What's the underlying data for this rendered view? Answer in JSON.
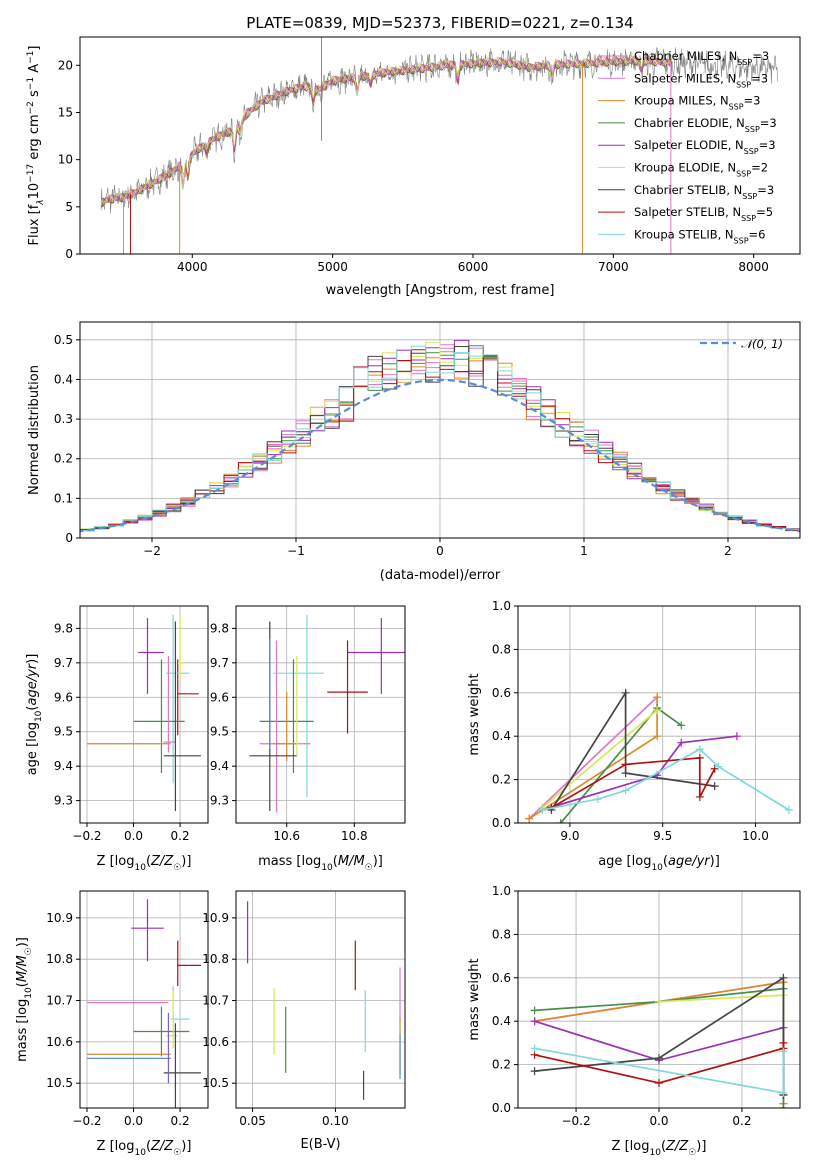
{
  "title": "PLATE=0839, MJD=52373, FIBERID=0221, z=0.134",
  "legend_entries": [
    {
      "label": "Chabrier MILES, N",
      "sub": "SSP",
      "tail": "=3",
      "color": "#e377c2"
    },
    {
      "label": "Salpeter MILES, N",
      "sub": "SSP",
      "tail": "=3",
      "color": "#e377c2"
    },
    {
      "label": "Kroupa MILES, N",
      "sub": "SSP",
      "tail": "=3",
      "color": "#d98a2b"
    },
    {
      "label": "Chabrier ELODIE, N",
      "sub": "SSP",
      "tail": "=3",
      "color": "#4a8c4a"
    },
    {
      "label": "Salpeter ELODIE, N",
      "sub": "SSP",
      "tail": "=3",
      "color": "#9b30b5"
    },
    {
      "label": "Kroupa ELODIE, N",
      "sub": "SSP",
      "tail": "=2",
      "color": "#d6e85a"
    },
    {
      "label": "Chabrier STELIB, N",
      "sub": "SSP",
      "tail": "=3",
      "color": "#444444"
    },
    {
      "label": "Salpeter STELIB, N",
      "sub": "SSP",
      "tail": "=5",
      "color": "#b01010"
    },
    {
      "label": "Kroupa STELIB, N",
      "sub": "SSP",
      "tail": "=6",
      "color": "#7fd8dc"
    }
  ],
  "chart_data": [
    {
      "id": "spectrum",
      "type": "line",
      "xlabel": "wavelength [Angstrom, rest frame]",
      "ylabel": "Flux [f_λ 10^-17 erg cm^-2 s^-1 A^-1]",
      "ylabel_parts": {
        "a": "Flux [f",
        "b": "λ",
        "c": "10",
        "d": "−17",
        "e": " erg cm",
        "f": "−2",
        "g": " s",
        "h": "−1",
        "i": " A",
        "j": "−1",
        "k": "]"
      },
      "xlim": [
        3200,
        8330
      ],
      "ylim": [
        0,
        23
      ],
      "xticks": [
        4000,
        5000,
        6000,
        7000,
        8000
      ],
      "yticks": [
        0,
        5,
        10,
        15,
        20
      ],
      "continuum": {
        "x": [
          3350,
          3400,
          3500,
          3600,
          3700,
          3800,
          3900,
          4000,
          4100,
          4200,
          4300,
          4400,
          4500,
          4600,
          4700,
          4800,
          4900,
          5000,
          5200,
          5400,
          5600,
          5800,
          6000,
          6200,
          6400,
          6600,
          6800,
          7000,
          7200,
          7400
        ],
        "y": [
          5.4,
          5.8,
          6.0,
          6.6,
          7.4,
          8.2,
          9.2,
          10.6,
          11.8,
          12.6,
          13.2,
          15.0,
          16.2,
          16.8,
          17.4,
          17.8,
          17.4,
          18.4,
          18.8,
          19.3,
          19.6,
          20.0,
          20.2,
          20.4,
          19.8,
          20.1,
          20.2,
          20.4,
          20.5,
          20.3
        ]
      }
    },
    {
      "id": "residual_hist",
      "type": "line",
      "xlabel": "(data-model)/error",
      "ylabel": "Normed distribution",
      "xlim": [
        -2.5,
        2.5
      ],
      "ylim": [
        0,
        0.545
      ],
      "xticks": [
        -2,
        -1,
        0,
        1,
        2
      ],
      "yticks": [
        0.0,
        0.1,
        0.2,
        0.3,
        0.4,
        0.5
      ],
      "legend": [
        "𝒩(0, 1)"
      ],
      "bin_width": 0.1,
      "reference_curve": {
        "name": "𝒩(0, 1)",
        "mean": 0,
        "sigma": 1,
        "color": "#5b8bd9"
      }
    },
    {
      "id": "age_vs_Z",
      "type": "scatter",
      "xlabel": "Z [log10(Z/Z☉)]",
      "ylabel": "age [log10(age/yr)]",
      "xlim": [
        -0.23,
        0.32
      ],
      "ylim": [
        9.235,
        9.865
      ],
      "xticks": [
        -0.2,
        0.0,
        0.2
      ],
      "yticks": [
        9.3,
        9.4,
        9.5,
        9.6,
        9.7,
        9.8
      ],
      "points": [
        {
          "x": 0.06,
          "y": 9.73,
          "xerr": [
            0.04,
            0.07
          ],
          "yerr": [
            0.12,
            0.1
          ],
          "color": "#9b30b5"
        },
        {
          "x": 0.19,
          "y": 9.61,
          "xerr": [
            0.0,
            0.09
          ],
          "yerr": [
            0.12,
            0.1
          ],
          "color": "#b01010"
        },
        {
          "x": 0.17,
          "y": 9.67,
          "xerr": [
            0.03,
            0.07
          ],
          "yerr": [
            0.32,
            0.17
          ],
          "color": "#7fd8dc"
        },
        {
          "x": 0.12,
          "y": 9.53,
          "xerr": [
            0.12,
            0.1
          ],
          "yerr": [
            0.15,
            0.18
          ],
          "color": "#4a8c4a"
        },
        {
          "x": -0.05,
          "y": 9.465,
          "xerr": [
            0.15,
            0.21
          ],
          "yerr": [
            0.0,
            0.0
          ],
          "color": "#d98a2b"
        },
        {
          "x": 0.15,
          "y": 9.47,
          "xerr": [
            0.02,
            0.03
          ],
          "yerr": [
            0.03,
            0.25
          ],
          "color": "#e377c2"
        },
        {
          "x": 0.18,
          "y": 9.43,
          "xerr": [
            0.05,
            0.11
          ],
          "yerr": [
            0.16,
            0.39
          ],
          "color": "#444444"
        },
        {
          "x": 0.2,
          "y": 9.7,
          "xerr": [
            0.01,
            0.02
          ],
          "yerr": [
            0.05,
            0.14
          ],
          "color": "#d6e85a"
        }
      ]
    },
    {
      "id": "age_vs_mass",
      "type": "scatter",
      "xlabel": "mass [log10(M/M☉)]",
      "ylabel": "",
      "xlim": [
        10.45,
        10.95
      ],
      "ylim": [
        9.235,
        9.865
      ],
      "xticks": [
        10.6,
        10.8
      ],
      "yticks": [
        9.3,
        9.4,
        9.5,
        9.6,
        9.7,
        9.8
      ],
      "points": [
        {
          "x": 10.88,
          "y": 9.73,
          "xerr": [
            0.1,
            0.07
          ],
          "yerr": [
            0.12,
            0.1
          ],
          "color": "#9b30b5"
        },
        {
          "x": 10.78,
          "y": 9.615,
          "xerr": [
            0.06,
            0.06
          ],
          "yerr": [
            0.12,
            0.15
          ],
          "color": "#b01010"
        },
        {
          "x": 10.66,
          "y": 9.67,
          "xerr": [
            0.1,
            0.05
          ],
          "yerr": [
            0.36,
            0.17
          ],
          "color": "#7fd8dc"
        },
        {
          "x": 10.62,
          "y": 9.53,
          "xerr": [
            0.1,
            0.06
          ],
          "yerr": [
            0.15,
            0.18
          ],
          "color": "#4a8c4a"
        },
        {
          "x": 10.57,
          "y": 9.465,
          "xerr": [
            0.05,
            0.1
          ],
          "yerr": [
            0.2,
            0.3
          ],
          "color": "#e377c2"
        },
        {
          "x": 10.6,
          "y": 9.465,
          "xerr": [
            0.04,
            0.03
          ],
          "yerr": [
            0.05,
            0.15
          ],
          "color": "#d98a2b"
        },
        {
          "x": 10.55,
          "y": 9.43,
          "xerr": [
            0.06,
            0.08
          ],
          "yerr": [
            0.16,
            0.39
          ],
          "color": "#444444"
        },
        {
          "x": 10.55,
          "y": 9.55,
          "xerr": [
            0.0,
            0.0
          ],
          "yerr": [
            0.1,
            0.22
          ],
          "color": "#5b8bd9"
        },
        {
          "x": 10.63,
          "y": 9.55,
          "xerr": [
            0.0,
            0.0
          ],
          "yerr": [
            0.12,
            0.17
          ],
          "color": "#d6e85a"
        }
      ]
    },
    {
      "id": "massweight_vs_age",
      "type": "line",
      "xlabel": "age [log10(age/yr)]",
      "ylabel": "mass weight",
      "xlim": [
        8.72,
        10.24
      ],
      "ylim": [
        0,
        1
      ],
      "xticks": [
        9.0,
        9.5,
        10.0
      ],
      "yticks": [
        0.0,
        0.2,
        0.4,
        0.6,
        0.8,
        1.0
      ],
      "series": [
        {
          "x": [
            8.78,
            9.47
          ],
          "y": [
            0.02,
            0.58
          ],
          "color": "#e377c2"
        },
        {
          "x": [
            8.78,
            9.47,
            9.47
          ],
          "y": [
            0.02,
            0.4,
            0.58
          ],
          "color": "#d98a2b"
        },
        {
          "x": [
            8.95,
            9.47,
            9.6
          ],
          "y": [
            0.0,
            0.53,
            0.45
          ],
          "color": "#4a8c4a"
        },
        {
          "x": [
            8.85,
            9.47,
            9.6,
            9.9
          ],
          "y": [
            0.06,
            0.22,
            0.37,
            0.4
          ],
          "color": "#9b30b5"
        },
        {
          "x": [
            8.85,
            9.47
          ],
          "y": [
            0.07,
            0.52
          ],
          "color": "#d6e85a"
        },
        {
          "x": [
            8.9,
            9.3,
            9.3,
            9.78
          ],
          "y": [
            0.06,
            0.6,
            0.23,
            0.17
          ],
          "color": "#444444"
        },
        {
          "x": [
            8.9,
            9.3,
            9.7,
            9.7,
            9.78
          ],
          "y": [
            0.07,
            0.27,
            0.3,
            0.12,
            0.25
          ],
          "color": "#b01010"
        },
        {
          "x": [
            8.85,
            9.15,
            9.3,
            9.7,
            9.8,
            10.18
          ],
          "y": [
            0.06,
            0.11,
            0.15,
            0.34,
            0.26,
            0.06
          ],
          "color": "#7fd8dc"
        }
      ]
    },
    {
      "id": "mass_vs_Z",
      "type": "scatter",
      "xlabel": "Z [log10(Z/Z☉)]",
      "ylabel": "mass [log10(M/M☉)]",
      "xlim": [
        -0.23,
        0.32
      ],
      "ylim": [
        10.44,
        10.965
      ],
      "xticks": [
        -0.2,
        0.0,
        0.2
      ],
      "yticks": [
        10.5,
        10.6,
        10.7,
        10.8,
        10.9
      ],
      "points": [
        {
          "x": 0.06,
          "y": 10.875,
          "xerr": [
            0.07,
            0.07
          ],
          "yerr": [
            0.08,
            0.07
          ],
          "color": "#9b30b5"
        },
        {
          "x": 0.19,
          "y": 10.785,
          "xerr": [
            0.0,
            0.1
          ],
          "yerr": [
            0.05,
            0.06
          ],
          "color": "#b01010"
        },
        {
          "x": 0.05,
          "y": 10.695,
          "xerr": [
            0.25,
            0.1
          ],
          "yerr": [
            0.0,
            0.0
          ],
          "color": "#e377c2"
        },
        {
          "x": 0.17,
          "y": 10.655,
          "xerr": [
            0.01,
            0.07
          ],
          "yerr": [
            0.07,
            0.08
          ],
          "color": "#7fd8dc"
        },
        {
          "x": 0.12,
          "y": 10.625,
          "xerr": [
            0.12,
            0.12
          ],
          "yerr": [
            0.06,
            0.06
          ],
          "color": "#4a8c4a"
        },
        {
          "x": 0.17,
          "y": 10.615,
          "xerr": [
            0.03,
            0.02
          ],
          "yerr": [
            0.03,
            0.11
          ],
          "color": "#d6e85a"
        },
        {
          "x": -0.05,
          "y": 10.57,
          "xerr": [
            0.15,
            0.21
          ],
          "yerr": [
            0.0,
            0.0
          ],
          "color": "#d98a2b"
        },
        {
          "x": -0.05,
          "y": 10.56,
          "xerr": [
            0.15,
            0.21
          ],
          "yerr": [
            0.0,
            0.0
          ],
          "color": "#5b8bd9"
        },
        {
          "x": 0.18,
          "y": 10.525,
          "xerr": [
            0.05,
            0.11
          ],
          "yerr": [
            0.1,
            0.12
          ],
          "color": "#444444"
        },
        {
          "x": 0.15,
          "y": 10.6,
          "xerr": [
            0.0,
            0.0
          ],
          "yerr": [
            0.1,
            0.07
          ],
          "color": "#7a5fd0"
        }
      ]
    },
    {
      "id": "mass_vs_ebv",
      "type": "scatter",
      "xlabel": "E(B-V)",
      "ylabel": "",
      "xlim": [
        0.04,
        0.142
      ],
      "ylim": [
        10.44,
        10.965
      ],
      "xticks": [
        0.05,
        0.1
      ],
      "yticks": [
        10.5,
        10.6,
        10.7,
        10.8,
        10.9
      ],
      "points": [
        {
          "x": 0.047,
          "y": 10.87,
          "yerr": [
            0.08,
            0.07
          ],
          "color": "#9b30b5"
        },
        {
          "x": 0.063,
          "y": 10.65,
          "yerr": [
            0.08,
            0.08
          ],
          "color": "#d6e85a"
        },
        {
          "x": 0.07,
          "y": 10.605,
          "yerr": [
            0.08,
            0.08
          ],
          "color": "#4a8c4a"
        },
        {
          "x": 0.112,
          "y": 10.785,
          "yerr": [
            0.06,
            0.06
          ],
          "color": "#b01010"
        },
        {
          "x": 0.117,
          "y": 10.5,
          "yerr": [
            0.04,
            0.03
          ],
          "color": "#444444"
        },
        {
          "x": 0.118,
          "y": 10.655,
          "yerr": [
            0.08,
            0.07
          ],
          "color": "#7fd8dc"
        },
        {
          "x": 0.139,
          "y": 10.7,
          "yerr": [
            0.05,
            0.08
          ],
          "color": "#e377c2"
        },
        {
          "x": 0.139,
          "y": 10.59,
          "yerr": [
            0.07,
            0.07
          ],
          "color": "#d98a2b"
        },
        {
          "x": 0.139,
          "y": 10.56,
          "yerr": [
            0.05,
            0.06
          ],
          "color": "#5b8bd9"
        }
      ]
    },
    {
      "id": "massweight_vs_Z",
      "type": "line",
      "xlabel": "Z [log10(Z/Z☉)]",
      "ylabel": "mass weight",
      "xlim": [
        -0.34,
        0.34
      ],
      "ylim": [
        0,
        1
      ],
      "xticks": [
        -0.2,
        0.0,
        0.2
      ],
      "yticks": [
        0.0,
        0.2,
        0.4,
        0.6,
        0.8,
        1.0
      ],
      "series": [
        {
          "x": [
            -0.3,
            0.3,
            0.3
          ],
          "y": [
            0.4,
            0.58,
            0.02
          ],
          "color": "#e377c2"
        },
        {
          "x": [
            -0.3,
            0.3,
            0.3
          ],
          "y": [
            0.4,
            0.58,
            0.02
          ],
          "color": "#d98a2b"
        },
        {
          "x": [
            -0.3,
            0.0,
            0.3,
            0.3
          ],
          "y": [
            0.45,
            0.49,
            0.55,
            0.0
          ],
          "color": "#4a8c4a"
        },
        {
          "x": [
            -0.3,
            0.0,
            0.3,
            0.3
          ],
          "y": [
            0.4,
            0.22,
            0.37,
            0.06
          ],
          "color": "#9b30b5"
        },
        {
          "x": [
            0.0,
            0.3
          ],
          "y": [
            0.49,
            0.52
          ],
          "color": "#d6e85a"
        },
        {
          "x": [
            -0.3,
            0.0,
            0.3,
            0.3
          ],
          "y": [
            0.17,
            0.23,
            0.6,
            0.06
          ],
          "color": "#444444"
        },
        {
          "x": [
            -0.3,
            0.0,
            0.3,
            0.3
          ],
          "y": [
            0.245,
            0.115,
            0.275,
            0.3
          ],
          "color": "#b01010"
        },
        {
          "x": [
            -0.3,
            0.3,
            0.3
          ],
          "y": [
            0.275,
            0.07,
            0.26
          ],
          "color": "#7fd8dc"
        }
      ]
    }
  ]
}
